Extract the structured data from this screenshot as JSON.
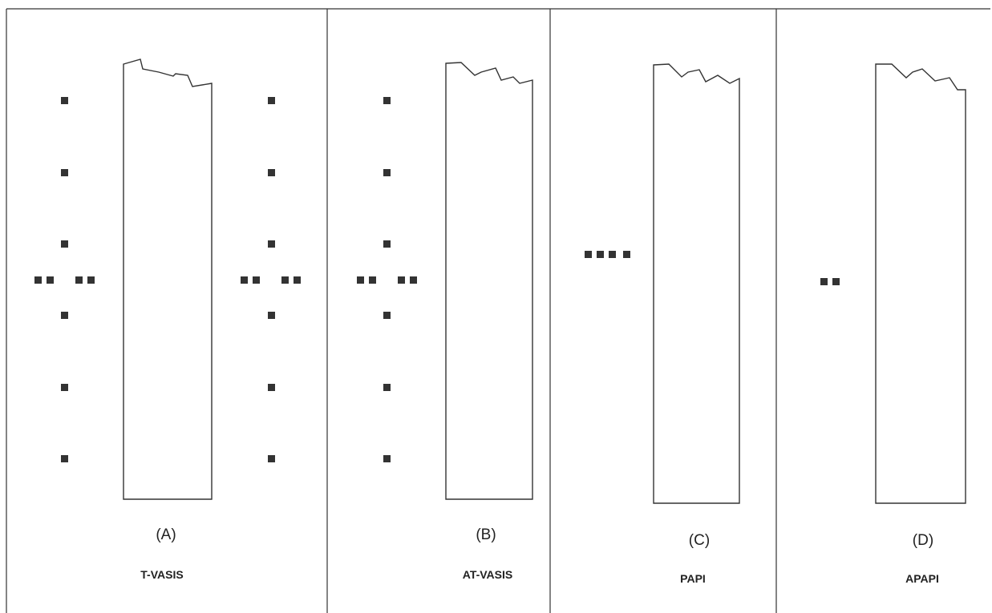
{
  "panels": [
    {
      "letter": "(A)",
      "name": "T-VASIS"
    },
    {
      "letter": "(B)",
      "name": "AT-VASIS"
    },
    {
      "letter": "(C)",
      "name": "PAPI"
    },
    {
      "letter": "(D)",
      "name": "APAPI"
    }
  ],
  "colors": {
    "ink": "#222222",
    "lamp": "#333333",
    "frame": "#333333",
    "background": "#ffffff"
  }
}
